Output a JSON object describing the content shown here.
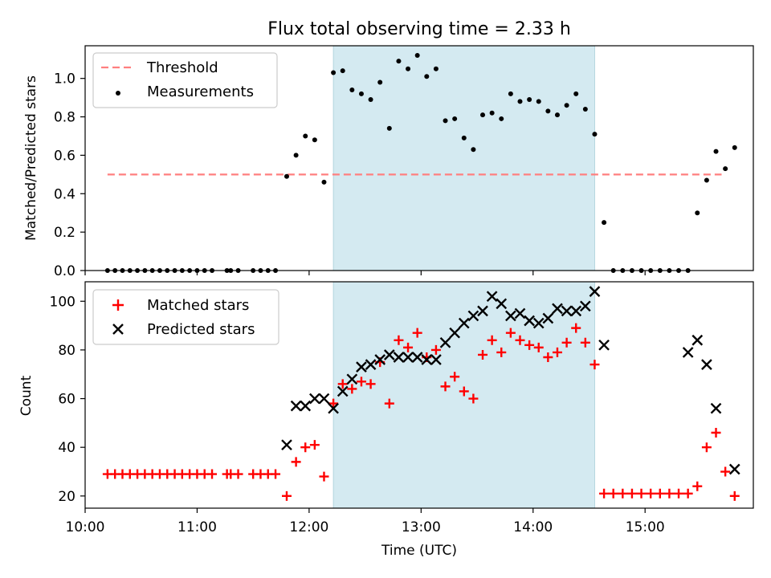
{
  "chart_data": [
    {
      "type": "scatter",
      "title": "Flux total observing time = 2.33 h",
      "ylabel": "Matched/Predicted stars",
      "xlim": [
        "10:00",
        "15:58"
      ],
      "ylim": [
        0,
        1.17
      ],
      "yticks": [
        0.0,
        0.2,
        0.4,
        0.6,
        0.8,
        1.0
      ],
      "ytick_labels": [
        "0.0",
        "0.2",
        "0.4",
        "0.6",
        "0.8",
        "1.0"
      ],
      "xtick_labels_shown": false,
      "legend_position": "upper-left",
      "shaded_span": [
        "12:13",
        "14:33"
      ],
      "shade_color": "#d4eaf1",
      "threshold": {
        "name": "Threshold",
        "value": 0.5,
        "x_range": [
          "10:12",
          "15:41"
        ],
        "color": "#ff7f7f",
        "style": "dashed"
      },
      "series": [
        {
          "name": "Measurements",
          "color": "#000000",
          "points": [
            [
              "10:12",
              0
            ],
            [
              "10:16",
              0
            ],
            [
              "10:20",
              0
            ],
            [
              "10:24",
              0
            ],
            [
              "10:28",
              0
            ],
            [
              "10:32",
              0
            ],
            [
              "10:36",
              0
            ],
            [
              "10:40",
              0
            ],
            [
              "10:44",
              0
            ],
            [
              "10:48",
              0
            ],
            [
              "10:52",
              0
            ],
            [
              "10:56",
              0
            ],
            [
              "11:00",
              0
            ],
            [
              "11:04",
              0
            ],
            [
              "11:08",
              0
            ],
            [
              "11:16",
              0
            ],
            [
              "11:18",
              0
            ],
            [
              "11:22",
              0
            ],
            [
              "11:30",
              0
            ],
            [
              "11:34",
              0
            ],
            [
              "11:38",
              0
            ],
            [
              "11:42",
              0
            ],
            [
              "11:48",
              0.49
            ],
            [
              "11:53",
              0.6
            ],
            [
              "11:58",
              0.7
            ],
            [
              "12:03",
              0.68
            ],
            [
              "12:08",
              0.46
            ],
            [
              "12:13",
              1.03
            ],
            [
              "12:18",
              1.04
            ],
            [
              "12:23",
              0.94
            ],
            [
              "12:28",
              0.92
            ],
            [
              "12:33",
              0.89
            ],
            [
              "12:38",
              0.98
            ],
            [
              "12:43",
              0.74
            ],
            [
              "12:48",
              1.09
            ],
            [
              "12:53",
              1.05
            ],
            [
              "12:58",
              1.12
            ],
            [
              "13:03",
              1.01
            ],
            [
              "13:08",
              1.05
            ],
            [
              "13:13",
              0.78
            ],
            [
              "13:18",
              0.79
            ],
            [
              "13:23",
              0.69
            ],
            [
              "13:28",
              0.63
            ],
            [
              "13:33",
              0.81
            ],
            [
              "13:38",
              0.82
            ],
            [
              "13:43",
              0.79
            ],
            [
              "13:48",
              0.92
            ],
            [
              "13:53",
              0.88
            ],
            [
              "13:58",
              0.89
            ],
            [
              "14:03",
              0.88
            ],
            [
              "14:08",
              0.83
            ],
            [
              "14:13",
              0.81
            ],
            [
              "14:18",
              0.86
            ],
            [
              "14:23",
              0.92
            ],
            [
              "14:28",
              0.84
            ],
            [
              "14:33",
              0.71
            ],
            [
              "14:38",
              0.25
            ],
            [
              "14:43",
              0
            ],
            [
              "14:48",
              0
            ],
            [
              "14:53",
              0
            ],
            [
              "14:58",
              0
            ],
            [
              "15:03",
              0
            ],
            [
              "15:08",
              0
            ],
            [
              "15:13",
              0
            ],
            [
              "15:18",
              0
            ],
            [
              "15:23",
              0
            ],
            [
              "15:28",
              0.3
            ],
            [
              "15:33",
              0.47
            ],
            [
              "15:38",
              0.62
            ],
            [
              "15:43",
              0.53
            ],
            [
              "15:48",
              0.64
            ]
          ]
        }
      ]
    },
    {
      "type": "scatter",
      "xlabel": "Time (UTC)",
      "ylabel": "Count",
      "xlim": [
        "10:00",
        "15:58"
      ],
      "ylim": [
        15,
        108
      ],
      "yticks": [
        20,
        40,
        60,
        80,
        100
      ],
      "ytick_labels": [
        "20",
        "40",
        "60",
        "80",
        "100"
      ],
      "xticks": [
        "10:00",
        "11:00",
        "12:00",
        "13:00",
        "14:00",
        "15:00"
      ],
      "xtick_labels": [
        "10:00",
        "11:00",
        "12:00",
        "13:00",
        "14:00",
        "15:00"
      ],
      "legend_position": "upper-left",
      "shaded_span": [
        "12:13",
        "14:33"
      ],
      "shade_color": "#d4eaf1",
      "series": [
        {
          "name": "Matched stars",
          "marker": "plus",
          "color": "#ff0000",
          "points": [
            [
              "10:12",
              29
            ],
            [
              "10:16",
              29
            ],
            [
              "10:20",
              29
            ],
            [
              "10:24",
              29
            ],
            [
              "10:28",
              29
            ],
            [
              "10:32",
              29
            ],
            [
              "10:36",
              29
            ],
            [
              "10:40",
              29
            ],
            [
              "10:44",
              29
            ],
            [
              "10:48",
              29
            ],
            [
              "10:52",
              29
            ],
            [
              "10:56",
              29
            ],
            [
              "11:00",
              29
            ],
            [
              "11:04",
              29
            ],
            [
              "11:08",
              29
            ],
            [
              "11:16",
              29
            ],
            [
              "11:18",
              29
            ],
            [
              "11:22",
              29
            ],
            [
              "11:30",
              29
            ],
            [
              "11:34",
              29
            ],
            [
              "11:38",
              29
            ],
            [
              "11:42",
              29
            ],
            [
              "11:48",
              20
            ],
            [
              "11:53",
              34
            ],
            [
              "11:58",
              40
            ],
            [
              "12:03",
              41
            ],
            [
              "12:08",
              28
            ],
            [
              "12:13",
              58
            ],
            [
              "12:18",
              66
            ],
            [
              "12:23",
              64
            ],
            [
              "12:28",
              67
            ],
            [
              "12:33",
              66
            ],
            [
              "12:38",
              75
            ],
            [
              "12:43",
              58
            ],
            [
              "12:48",
              84
            ],
            [
              "12:53",
              81
            ],
            [
              "12:58",
              87
            ],
            [
              "13:03",
              77
            ],
            [
              "13:08",
              80
            ],
            [
              "13:13",
              65
            ],
            [
              "13:18",
              69
            ],
            [
              "13:23",
              63
            ],
            [
              "13:28",
              60
            ],
            [
              "13:33",
              78
            ],
            [
              "13:38",
              84
            ],
            [
              "13:43",
              79
            ],
            [
              "13:48",
              87
            ],
            [
              "13:53",
              84
            ],
            [
              "13:58",
              82
            ],
            [
              "14:03",
              81
            ],
            [
              "14:08",
              77
            ],
            [
              "14:13",
              79
            ],
            [
              "14:18",
              83
            ],
            [
              "14:23",
              89
            ],
            [
              "14:28",
              83
            ],
            [
              "14:33",
              74
            ],
            [
              "14:38",
              21
            ],
            [
              "14:43",
              21
            ],
            [
              "14:48",
              21
            ],
            [
              "14:53",
              21
            ],
            [
              "14:58",
              21
            ],
            [
              "15:03",
              21
            ],
            [
              "15:08",
              21
            ],
            [
              "15:13",
              21
            ],
            [
              "15:18",
              21
            ],
            [
              "15:23",
              21
            ],
            [
              "15:28",
              24
            ],
            [
              "15:33",
              40
            ],
            [
              "15:38",
              46
            ],
            [
              "15:43",
              30
            ],
            [
              "15:48",
              20
            ]
          ]
        },
        {
          "name": "Predicted stars",
          "marker": "x",
          "color": "#000000",
          "points": [
            [
              "11:48",
              41
            ],
            [
              "11:53",
              57
            ],
            [
              "11:58",
              57
            ],
            [
              "12:03",
              60
            ],
            [
              "12:08",
              60
            ],
            [
              "12:13",
              56
            ],
            [
              "12:18",
              63
            ],
            [
              "12:23",
              68
            ],
            [
              "12:28",
              73
            ],
            [
              "12:33",
              74
            ],
            [
              "12:38",
              76
            ],
            [
              "12:43",
              78
            ],
            [
              "12:48",
              77
            ],
            [
              "12:53",
              77
            ],
            [
              "12:58",
              77
            ],
            [
              "13:03",
              76
            ],
            [
              "13:08",
              76
            ],
            [
              "13:13",
              83
            ],
            [
              "13:18",
              87
            ],
            [
              "13:23",
              91
            ],
            [
              "13:28",
              94
            ],
            [
              "13:33",
              96
            ],
            [
              "13:38",
              102
            ],
            [
              "13:43",
              99
            ],
            [
              "13:48",
              94
            ],
            [
              "13:53",
              95
            ],
            [
              "13:58",
              92
            ],
            [
              "14:03",
              91
            ],
            [
              "14:08",
              93
            ],
            [
              "14:13",
              97
            ],
            [
              "14:18",
              96
            ],
            [
              "14:23",
              96
            ],
            [
              "14:28",
              98
            ],
            [
              "14:33",
              104
            ],
            [
              "14:38",
              82
            ],
            [
              "15:23",
              79
            ],
            [
              "15:28",
              84
            ],
            [
              "15:33",
              74
            ],
            [
              "15:38",
              56
            ],
            [
              "15:48",
              31
            ]
          ]
        }
      ]
    }
  ]
}
